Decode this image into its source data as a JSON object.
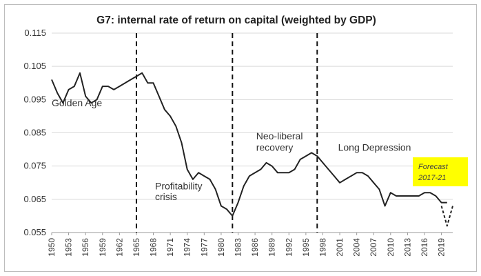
{
  "chart_data": {
    "type": "line",
    "title": "G7: internal rate of return on capital (weighted by GDP)",
    "ylim": [
      0.055,
      0.115
    ],
    "yticks": [
      "0.055",
      "0.065",
      "0.075",
      "0.085",
      "0.095",
      "0.105",
      "0.115"
    ],
    "xticks": [
      "1950",
      "1953",
      "1956",
      "1959",
      "1962",
      "1965",
      "1968",
      "1971",
      "1974",
      "1977",
      "1980",
      "1983",
      "1986",
      "1989",
      "1992",
      "1995",
      "1998",
      "2001",
      "2004",
      "2007",
      "2010",
      "2013",
      "2016",
      "2019"
    ],
    "grid": "horizontal",
    "legend": "none",
    "series": [
      {
        "x": [
          1950,
          1951,
          1952,
          1953,
          1954,
          1955,
          1956,
          1957,
          1958,
          1959,
          1960,
          1961,
          1962,
          1963,
          1964,
          1965,
          1966,
          1967,
          1968,
          1969,
          1970,
          1971,
          1972,
          1973,
          1974,
          1975,
          1976,
          1977,
          1978,
          1979,
          1980,
          1981,
          1982,
          1983,
          1984,
          1985,
          1986,
          1987,
          1988,
          1989,
          1990,
          1991,
          1992,
          1993,
          1994,
          1995,
          1996,
          1997,
          1998,
          1999,
          2000,
          2001,
          2002,
          2003,
          2004,
          2005,
          2006,
          2007,
          2008,
          2009,
          2010,
          2011,
          2012,
          2013,
          2014,
          2015,
          2016,
          2017,
          2018,
          2019,
          2020
        ],
        "y": [
          0.101,
          0.097,
          0.094,
          0.098,
          0.099,
          0.103,
          0.096,
          0.094,
          0.095,
          0.099,
          0.099,
          0.098,
          0.099,
          0.1,
          0.101,
          0.102,
          0.103,
          0.1,
          0.1,
          0.096,
          0.092,
          0.09,
          0.087,
          0.082,
          0.074,
          0.071,
          0.073,
          0.072,
          0.071,
          0.068,
          0.063,
          0.062,
          0.06,
          0.064,
          0.069,
          0.072,
          0.073,
          0.074,
          0.076,
          0.075,
          0.073,
          0.073,
          0.073,
          0.074,
          0.077,
          0.078,
          0.079,
          0.078,
          0.076,
          0.074,
          0.072,
          0.07,
          0.071,
          0.072,
          0.073,
          0.073,
          0.072,
          0.07,
          0.068,
          0.063,
          0.067,
          0.066,
          0.066,
          0.066,
          0.066,
          0.066,
          0.067,
          0.067,
          0.066,
          0.064,
          0.064
        ],
        "color": "#222222"
      },
      {
        "x": [
          2019,
          2020,
          2021
        ],
        "y": [
          0.063,
          0.057,
          0.063
        ],
        "color": "#222222",
        "style": "dashed"
      }
    ],
    "dividers": [
      1965,
      1982,
      1997
    ],
    "annotations": [
      {
        "text": "Golden Age",
        "x": 1950,
        "y": 0.093
      },
      {
        "text": "Profitability",
        "x": 1968.3,
        "y": 0.068
      },
      {
        "text": "crisis",
        "x": 1968.3,
        "y": 0.0648
      },
      {
        "text": "Neo-liberal",
        "x": 1986.2,
        "y": 0.083
      },
      {
        "text": "recovery",
        "x": 1986.2,
        "y": 0.0796
      },
      {
        "text": "Long Depression",
        "x": 2000.7,
        "y": 0.0796
      }
    ],
    "forecast_box": {
      "line1": "Forecast",
      "line2": "2017-21",
      "color": "#ffff00"
    }
  }
}
